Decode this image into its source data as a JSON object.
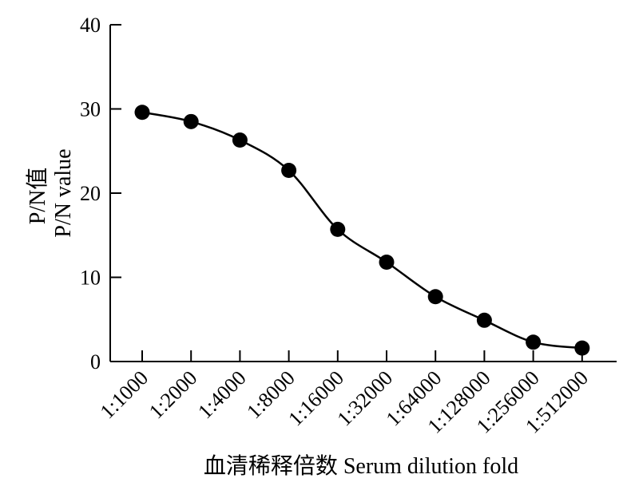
{
  "chart_data": {
    "type": "line",
    "title": "",
    "xlabel": "血清稀释倍数 Serum dilution fold",
    "ylabel_lines": [
      "P/N值",
      "P/N value"
    ],
    "categories": [
      "1:1000",
      "1:2000",
      "1:4000",
      "1:8000",
      "1:16000",
      "1:32000",
      "1:64000",
      "1:128000",
      "1:256000",
      "1:512000"
    ],
    "series": [
      {
        "values": [
          29.6,
          28.5,
          26.3,
          22.7,
          15.7,
          11.8,
          7.7,
          4.9,
          2.3,
          1.6
        ]
      }
    ],
    "ylim": [
      0,
      40
    ],
    "yticks": [
      0,
      10,
      20,
      30,
      40
    ],
    "grid": false,
    "legend": "none",
    "colors": {
      "line": "#000000",
      "marker": "#000000"
    }
  }
}
